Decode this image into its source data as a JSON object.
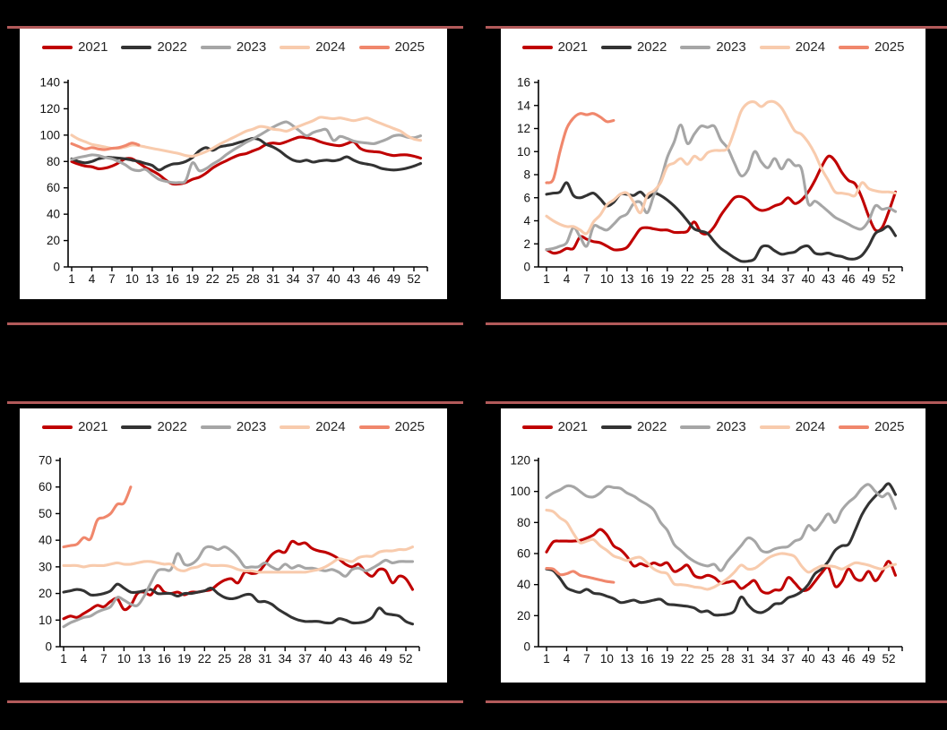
{
  "page": {
    "background": "#000000",
    "divider_color": "#B25A5A"
  },
  "legend": {
    "years": [
      "2021",
      "2022",
      "2023",
      "2024",
      "2025"
    ],
    "colors": {
      "2021": "#C00000",
      "2022": "#333333",
      "2023": "#A6A6A6",
      "2024": "#F8CBAD",
      "2025": "#F0876C"
    }
  },
  "chart_data": [
    {
      "id": "top-left",
      "type": "line",
      "title": "",
      "xlabel": "",
      "ylabel": "",
      "xticks": [
        1,
        4,
        7,
        10,
        13,
        16,
        19,
        22,
        25,
        28,
        31,
        34,
        37,
        40,
        43,
        46,
        49,
        52
      ],
      "x_range": [
        1,
        53
      ],
      "ylim": [
        0,
        140
      ],
      "ytick_step": 20,
      "grid": false,
      "legend_position": "top",
      "series": [
        {
          "name": "2021",
          "values": [
            80,
            78,
            76.5,
            76,
            74.5,
            75,
            76.5,
            79,
            82,
            82,
            79,
            75.5,
            73,
            70,
            66,
            63,
            63,
            64,
            66.5,
            68,
            71,
            75,
            78,
            80.5,
            83,
            85,
            86,
            88,
            90,
            93,
            94,
            93.5,
            95,
            97,
            98.5,
            98,
            97,
            95,
            93.5,
            92.5,
            92,
            93.5,
            95,
            90,
            88,
            87.5,
            87,
            85.5,
            84.5,
            85,
            85,
            84,
            82.5
          ]
        },
        {
          "name": "2022",
          "values": [
            82,
            80,
            79,
            80,
            82,
            83,
            83,
            82.5,
            82,
            81,
            80,
            78.5,
            77,
            73.5,
            76,
            78,
            78.5,
            80,
            83,
            88,
            90.5,
            88.5,
            91,
            92,
            93,
            94.5,
            96,
            97.5,
            96.5,
            93,
            91,
            88,
            84,
            81,
            80,
            81,
            79.5,
            80.5,
            81,
            80.5,
            81.5,
            83.5,
            81,
            79,
            78,
            77,
            75,
            74,
            73.5,
            74,
            75,
            76.5,
            78.5
          ]
        },
        {
          "name": "2023",
          "values": [
            81.5,
            83,
            84,
            85,
            84.5,
            83,
            82,
            80,
            77.5,
            74,
            73,
            74,
            70,
            66.5,
            65,
            64,
            64,
            65.5,
            79,
            73,
            74.5,
            78,
            81,
            85,
            88.5,
            91.5,
            94.5,
            97,
            100,
            103,
            106,
            108.5,
            110,
            107,
            103,
            99.5,
            102,
            103.5,
            104,
            96,
            99,
            97.5,
            95.5,
            94.5,
            94,
            93.5,
            95,
            97,
            99.5,
            100,
            98.5,
            98,
            99.5
          ]
        },
        {
          "name": "2024",
          "values": [
            100,
            97,
            95,
            93,
            92,
            91,
            90,
            90,
            91,
            92.5,
            92,
            91,
            90,
            89,
            88,
            87,
            86,
            84.5,
            84,
            85.5,
            87.5,
            90,
            93,
            95.5,
            98,
            100.5,
            103,
            104.5,
            106.5,
            106,
            104.5,
            104,
            103,
            105,
            107,
            109,
            111,
            113.5,
            113,
            112.5,
            113,
            112,
            111,
            112,
            113,
            111,
            109,
            107,
            105,
            103,
            99.5,
            97,
            96
          ]
        },
        {
          "name": "2025",
          "values": [
            93.5,
            91.5,
            89.5,
            90.5,
            89.5,
            89,
            90,
            90.5,
            92,
            94,
            92.5
          ]
        }
      ]
    },
    {
      "id": "top-right",
      "type": "line",
      "title": "",
      "xlabel": "",
      "ylabel": "",
      "xticks": [
        1,
        4,
        7,
        10,
        13,
        16,
        19,
        22,
        25,
        28,
        31,
        34,
        37,
        40,
        43,
        46,
        49,
        52
      ],
      "x_range": [
        1,
        53
      ],
      "ylim": [
        0,
        16
      ],
      "ytick_step": 2,
      "grid": false,
      "legend_position": "top",
      "series": [
        {
          "name": "2021",
          "values": [
            1.5,
            1.2,
            1.3,
            1.6,
            1.6,
            2.6,
            2.4,
            2.2,
            2.1,
            1.8,
            1.5,
            1.5,
            1.7,
            2.5,
            3.3,
            3.4,
            3.3,
            3.2,
            3.2,
            3.0,
            3.0,
            3.1,
            3.9,
            3.0,
            2.9,
            3.5,
            4.5,
            5.3,
            6.0,
            6.1,
            5.8,
            5.2,
            4.9,
            5.0,
            5.3,
            5.5,
            6.0,
            5.5,
            5.8,
            6.5,
            7.5,
            8.7,
            9.6,
            9.2,
            8.2,
            7.5,
            7.2,
            6.0,
            4.4,
            3.2,
            3.4,
            4.8,
            6.5
          ]
        },
        {
          "name": "2022",
          "values": [
            6.3,
            6.4,
            6.5,
            7.3,
            6.2,
            6.0,
            6.2,
            6.4,
            5.9,
            5.3,
            5.6,
            6.3,
            6.3,
            6.2,
            6.5,
            6.0,
            6.4,
            6.2,
            5.8,
            5.3,
            4.7,
            4.0,
            3.3,
            3.1,
            2.9,
            2.2,
            1.6,
            1.2,
            0.8,
            0.5,
            0.5,
            0.7,
            1.7,
            1.8,
            1.4,
            1.1,
            1.2,
            1.3,
            1.7,
            1.8,
            1.2,
            1.1,
            1.2,
            1.0,
            0.9,
            0.7,
            0.7,
            1.0,
            1.8,
            2.9,
            3.2,
            3.5,
            2.7
          ]
        },
        {
          "name": "2023",
          "values": [
            1.5,
            1.6,
            1.8,
            2.1,
            3.4,
            2.6,
            1.8,
            3.5,
            3.4,
            3.2,
            3.7,
            4.3,
            4.6,
            5.5,
            5.6,
            4.7,
            6.2,
            7.5,
            9.5,
            10.8,
            12.3,
            10.7,
            11.5,
            12.2,
            12.1,
            12.2,
            11.0,
            10.3,
            9.0,
            7.9,
            8.4,
            10.0,
            9.1,
            8.6,
            9.4,
            8.5,
            9.3,
            8.8,
            8.5,
            5.5,
            5.7,
            5.3,
            4.8,
            4.3,
            4.0,
            3.7,
            3.4,
            3.3,
            4.0,
            5.3,
            5.0,
            5.1,
            4.8
          ]
        },
        {
          "name": "2024",
          "values": [
            4.4,
            4.0,
            3.7,
            3.5,
            3.5,
            3.2,
            2.9,
            3.9,
            4.5,
            5.4,
            5.8,
            6.3,
            6.4,
            5.6,
            4.7,
            6.2,
            6.6,
            7.3,
            8.7,
            9.0,
            9.4,
            8.9,
            9.6,
            9.3,
            9.9,
            10.1,
            10.1,
            10.3,
            11.8,
            13.5,
            14.2,
            14.3,
            13.9,
            14.3,
            14.3,
            13.8,
            12.8,
            11.8,
            11.5,
            10.8,
            9.8,
            8.5,
            7.5,
            6.5,
            6.4,
            6.3,
            6.2,
            7.3,
            6.8,
            6.6,
            6.5,
            6.5,
            6.4
          ]
        },
        {
          "name": "2025",
          "values": [
            7.3,
            7.6,
            10.0,
            12.0,
            12.9,
            13.3,
            13.2,
            13.3,
            13.0,
            12.6,
            12.7
          ]
        }
      ]
    },
    {
      "id": "bottom-left",
      "type": "line",
      "title": "",
      "xlabel": "",
      "ylabel": "",
      "xticks": [
        1,
        4,
        7,
        10,
        13,
        16,
        19,
        22,
        25,
        28,
        31,
        34,
        37,
        40,
        43,
        46,
        49,
        52
      ],
      "x_range": [
        1,
        53
      ],
      "ylim": [
        0,
        70
      ],
      "ytick_step": 10,
      "grid": false,
      "legend_position": "top",
      "series": [
        {
          "name": "2021",
          "values": [
            10.5,
            11.5,
            11,
            12.5,
            14,
            15.5,
            15,
            17,
            18,
            14,
            15.5,
            20,
            20.5,
            19.5,
            23,
            20.5,
            20,
            20.5,
            19.5,
            20.5,
            20.5,
            21,
            21.5,
            23.5,
            25,
            25.5,
            24,
            28,
            27.5,
            28,
            31,
            34.5,
            36,
            35.5,
            39.5,
            38.5,
            39,
            37,
            36,
            35.5,
            34.5,
            33,
            31,
            30,
            31,
            28,
            26.5,
            29,
            28.5,
            24,
            26.5,
            25.5,
            21.5
          ]
        },
        {
          "name": "2022",
          "values": [
            20.5,
            21,
            21.5,
            21,
            19.5,
            19.5,
            20,
            21,
            23.5,
            22,
            20.5,
            20.5,
            21,
            21.5,
            20,
            20,
            20,
            19,
            20,
            20,
            20.5,
            21,
            22,
            20,
            18.5,
            18,
            18.5,
            19.5,
            19.5,
            17,
            17,
            16,
            14,
            12.5,
            11,
            10,
            9.5,
            9.5,
            9.5,
            9,
            9,
            10.5,
            10,
            9,
            9,
            9.5,
            11,
            14.5,
            12.5,
            12,
            11.5,
            9.5,
            8.5
          ]
        },
        {
          "name": "2023",
          "values": [
            7.5,
            9,
            10,
            11,
            11.5,
            13,
            14,
            15,
            18.5,
            17.5,
            16,
            15.5,
            19,
            24,
            28.5,
            29,
            29,
            35,
            31,
            31,
            33,
            37,
            37.5,
            36.5,
            37.5,
            36,
            33.5,
            30,
            30,
            30,
            31.5,
            30,
            29,
            31,
            29.5,
            30.5,
            29.5,
            29.5,
            29,
            28.5,
            29,
            28,
            26.5,
            29,
            29.5,
            28.5,
            29.5,
            31,
            32.5,
            31.5,
            32,
            32,
            32
          ]
        },
        {
          "name": "2024",
          "values": [
            30.5,
            30.5,
            30.5,
            30,
            30.5,
            30.5,
            30.5,
            31,
            31.5,
            31,
            31,
            31.5,
            32,
            32,
            31.5,
            31,
            31,
            29,
            28.5,
            29.5,
            30,
            31,
            30.5,
            30.5,
            30.5,
            30,
            29,
            28.5,
            28.5,
            28,
            28,
            28,
            28,
            28,
            28,
            28,
            28,
            28.5,
            29,
            30,
            31.5,
            33,
            32.5,
            32,
            33.5,
            34,
            34,
            35.5,
            36,
            36,
            36.5,
            36.5,
            37.5
          ]
        },
        {
          "name": "2025",
          "values": [
            37.5,
            38,
            38.5,
            41,
            40.5,
            47.5,
            48.5,
            50,
            53.5,
            54,
            60
          ]
        }
      ]
    },
    {
      "id": "bottom-right",
      "type": "line",
      "title": "",
      "xlabel": "",
      "ylabel": "",
      "xticks": [
        1,
        4,
        7,
        10,
        13,
        16,
        19,
        22,
        25,
        28,
        31,
        34,
        37,
        40,
        43,
        46,
        49,
        52
      ],
      "x_range": [
        1,
        53
      ],
      "ylim": [
        0,
        120
      ],
      "ytick_step": 20,
      "grid": false,
      "legend_position": "top",
      "series": [
        {
          "name": "2021",
          "values": [
            61,
            67.5,
            68,
            68,
            68,
            68.5,
            70,
            72,
            75.5,
            72,
            65,
            62.5,
            58,
            52,
            53.5,
            52,
            54,
            52.5,
            54,
            48.5,
            50,
            52.5,
            46,
            44.5,
            46,
            44.5,
            41,
            41.5,
            42,
            37.5,
            40,
            42.5,
            36,
            34.5,
            36.5,
            37,
            44.5,
            41,
            36.5,
            37,
            42,
            47.5,
            51,
            39,
            42,
            50,
            44,
            43,
            48.5,
            42.5,
            48,
            55,
            46
          ]
        },
        {
          "name": "2022",
          "values": [
            50,
            49,
            44,
            38,
            36,
            35,
            37,
            34.5,
            34,
            32.5,
            31,
            28.5,
            29,
            30,
            28.5,
            29,
            30,
            30.5,
            27.5,
            27,
            26.5,
            26,
            25,
            22.5,
            23,
            20.5,
            20.5,
            21,
            23,
            32,
            27,
            23,
            22,
            24,
            27.5,
            28,
            31.5,
            33,
            35.5,
            40,
            47,
            50,
            55,
            62,
            65,
            66,
            75,
            85,
            92,
            97,
            101,
            105,
            98
          ]
        },
        {
          "name": "2023",
          "values": [
            96,
            99,
            101,
            103.5,
            103,
            100,
            97,
            96.5,
            99,
            103,
            102.5,
            102,
            99,
            97,
            94,
            91.5,
            88,
            80,
            75,
            66,
            62,
            58,
            55,
            53,
            52,
            53,
            49,
            55,
            60,
            65,
            70,
            68,
            62,
            61,
            63,
            64,
            64.5,
            68,
            70,
            78,
            75,
            80,
            85.5,
            80,
            88,
            93,
            96.5,
            102,
            104.5,
            100,
            96.5,
            98.5,
            89
          ]
        },
        {
          "name": "2024",
          "values": [
            88,
            87,
            83,
            80,
            73,
            67,
            68,
            69,
            65,
            62,
            58.5,
            57,
            55.5,
            57,
            57.5,
            54,
            50,
            48,
            47,
            40.5,
            40,
            39.5,
            38.5,
            38,
            37,
            38.5,
            41,
            44,
            48,
            52.5,
            50,
            50.5,
            53.5,
            57,
            59,
            60,
            59.5,
            58,
            52,
            48,
            50,
            52,
            52,
            51.5,
            50,
            52,
            54,
            53.5,
            52.5,
            51,
            50,
            52,
            53
          ]
        },
        {
          "name": "2025",
          "values": [
            50.5,
            50,
            46.5,
            47,
            48.5,
            46,
            45,
            44,
            43,
            42,
            41.5
          ]
        }
      ]
    }
  ]
}
